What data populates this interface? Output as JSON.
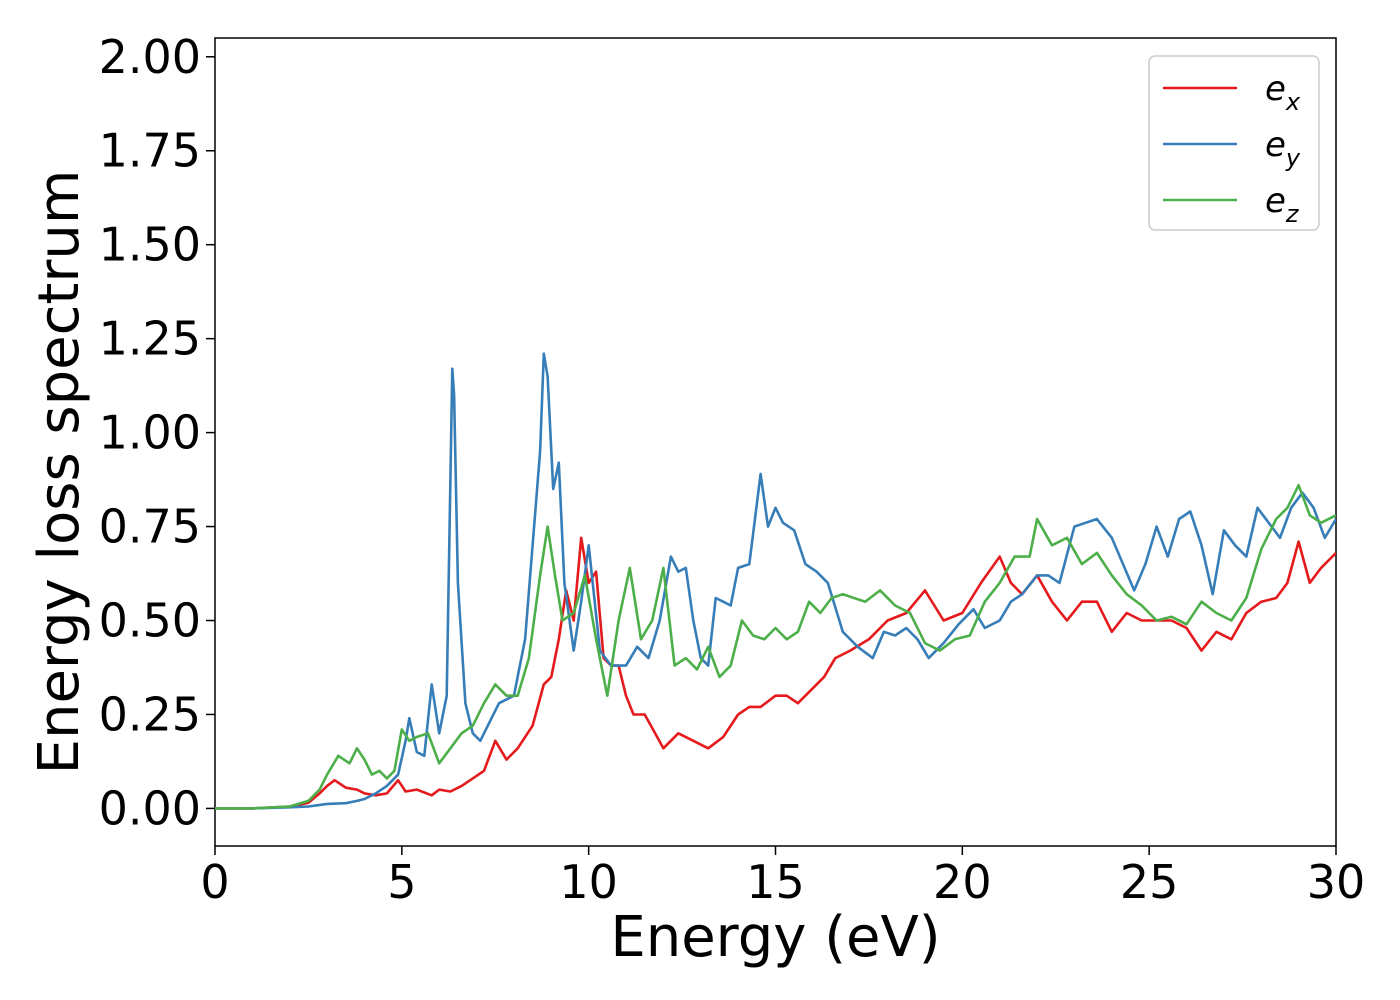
{
  "chart_data": {
    "type": "line",
    "title": "",
    "xlabel": "Energy (eV)",
    "ylabel": "Energy loss spectrum",
    "xlim": [
      0,
      30
    ],
    "ylim": [
      -0.1,
      2.05
    ],
    "xticks": [
      0,
      5,
      10,
      15,
      20,
      25,
      30
    ],
    "xtick_labels": [
      "0",
      "5",
      "10",
      "15",
      "20",
      "25",
      "30"
    ],
    "yticks": [
      0.0,
      0.25,
      0.5,
      0.75,
      1.0,
      1.25,
      1.5,
      1.75,
      2.0
    ],
    "ytick_labels": [
      "0.00",
      "0.25",
      "0.50",
      "0.75",
      "1.00",
      "1.25",
      "1.50",
      "1.75",
      "2.00"
    ],
    "grid": false,
    "legend_position": "top-right",
    "series": [
      {
        "name": "e_x",
        "legend_base": "e",
        "legend_sub": "x",
        "color": "#e41a1c",
        "x": [
          0,
          1,
          2,
          2.5,
          2.8,
          3.0,
          3.2,
          3.5,
          3.8,
          4.0,
          4.3,
          4.6,
          4.9,
          5.1,
          5.4,
          5.8,
          6.0,
          6.3,
          6.6,
          6.9,
          7.2,
          7.5,
          7.8,
          8.1,
          8.5,
          8.8,
          9.0,
          9.2,
          9.4,
          9.6,
          9.8,
          10.0,
          10.2,
          10.4,
          10.6,
          10.8,
          11.0,
          11.2,
          11.5,
          12.0,
          12.4,
          12.8,
          13.2,
          13.6,
          14.0,
          14.3,
          14.6,
          15.0,
          15.3,
          15.6,
          16.0,
          16.3,
          16.6,
          17.0,
          17.5,
          18.0,
          18.5,
          19.0,
          19.5,
          20.0,
          20.5,
          21.0,
          21.3,
          21.6,
          22.0,
          22.4,
          22.8,
          23.2,
          23.6,
          24.0,
          24.4,
          24.8,
          25.2,
          25.6,
          26.0,
          26.4,
          26.8,
          27.2,
          27.6,
          28.0,
          28.4,
          28.7,
          29.0,
          29.3,
          29.6,
          30.0
        ],
        "y": [
          0.0,
          0.0,
          0.005,
          0.015,
          0.04,
          0.06,
          0.075,
          0.055,
          0.05,
          0.04,
          0.035,
          0.04,
          0.075,
          0.045,
          0.05,
          0.035,
          0.05,
          0.045,
          0.06,
          0.08,
          0.1,
          0.18,
          0.13,
          0.16,
          0.22,
          0.33,
          0.35,
          0.45,
          0.58,
          0.5,
          0.72,
          0.6,
          0.63,
          0.4,
          0.38,
          0.38,
          0.3,
          0.25,
          0.25,
          0.16,
          0.2,
          0.18,
          0.16,
          0.19,
          0.25,
          0.27,
          0.27,
          0.3,
          0.3,
          0.28,
          0.32,
          0.35,
          0.4,
          0.42,
          0.45,
          0.5,
          0.52,
          0.58,
          0.5,
          0.52,
          0.6,
          0.67,
          0.6,
          0.57,
          0.62,
          0.55,
          0.5,
          0.55,
          0.55,
          0.47,
          0.52,
          0.5,
          0.5,
          0.5,
          0.48,
          0.42,
          0.47,
          0.45,
          0.52,
          0.55,
          0.56,
          0.6,
          0.71,
          0.6,
          0.64,
          0.68
        ]
      },
      {
        "name": "e_y",
        "legend_base": "e",
        "legend_sub": "y",
        "color": "#377eb8",
        "x": [
          0,
          1,
          2,
          2.5,
          3.0,
          3.5,
          3.8,
          4.0,
          4.3,
          4.6,
          4.9,
          5.1,
          5.2,
          5.4,
          5.6,
          5.8,
          6.0,
          6.2,
          6.35,
          6.4,
          6.5,
          6.7,
          6.9,
          7.1,
          7.3,
          7.6,
          8.0,
          8.3,
          8.5,
          8.7,
          8.8,
          8.9,
          9.05,
          9.2,
          9.35,
          9.6,
          9.8,
          10.0,
          10.3,
          10.6,
          11.0,
          11.3,
          11.6,
          11.9,
          12.2,
          12.4,
          12.6,
          12.8,
          13.0,
          13.2,
          13.4,
          13.6,
          13.8,
          14.0,
          14.3,
          14.6,
          14.8,
          15.0,
          15.2,
          15.5,
          15.8,
          16.1,
          16.4,
          16.8,
          17.2,
          17.6,
          17.9,
          18.2,
          18.5,
          18.8,
          19.1,
          19.5,
          19.9,
          20.3,
          20.6,
          21.0,
          21.3,
          21.6,
          22.0,
          22.3,
          22.6,
          23.0,
          23.3,
          23.6,
          24.0,
          24.3,
          24.6,
          24.9,
          25.2,
          25.5,
          25.8,
          26.1,
          26.4,
          26.7,
          27.0,
          27.3,
          27.6,
          27.9,
          28.2,
          28.5,
          28.8,
          29.1,
          29.4,
          29.7,
          30.0
        ],
        "y": [
          0.0,
          0.0,
          0.003,
          0.005,
          0.012,
          0.014,
          0.02,
          0.025,
          0.04,
          0.06,
          0.09,
          0.18,
          0.24,
          0.15,
          0.14,
          0.33,
          0.2,
          0.3,
          1.17,
          1.1,
          0.6,
          0.28,
          0.2,
          0.18,
          0.22,
          0.28,
          0.3,
          0.45,
          0.7,
          0.95,
          1.21,
          1.15,
          0.85,
          0.92,
          0.6,
          0.42,
          0.55,
          0.7,
          0.42,
          0.38,
          0.38,
          0.43,
          0.4,
          0.5,
          0.67,
          0.63,
          0.64,
          0.5,
          0.4,
          0.38,
          0.56,
          0.55,
          0.54,
          0.64,
          0.65,
          0.89,
          0.75,
          0.8,
          0.76,
          0.74,
          0.65,
          0.63,
          0.6,
          0.47,
          0.43,
          0.4,
          0.47,
          0.46,
          0.48,
          0.45,
          0.4,
          0.44,
          0.49,
          0.53,
          0.48,
          0.5,
          0.55,
          0.57,
          0.62,
          0.62,
          0.6,
          0.75,
          0.76,
          0.77,
          0.72,
          0.65,
          0.58,
          0.65,
          0.75,
          0.67,
          0.77,
          0.79,
          0.7,
          0.57,
          0.74,
          0.7,
          0.67,
          0.8,
          0.76,
          0.72,
          0.8,
          0.84,
          0.8,
          0.72,
          0.77
        ]
      },
      {
        "name": "e_z",
        "legend_base": "e",
        "legend_sub": "z",
        "color": "#4daf4a",
        "x": [
          0,
          1,
          2,
          2.5,
          2.8,
          3.0,
          3.3,
          3.6,
          3.8,
          4.0,
          4.2,
          4.4,
          4.6,
          4.8,
          5.0,
          5.2,
          5.4,
          5.7,
          6.0,
          6.3,
          6.6,
          6.9,
          7.2,
          7.5,
          7.8,
          8.1,
          8.4,
          8.7,
          8.9,
          9.1,
          9.3,
          9.6,
          9.9,
          10.2,
          10.5,
          10.8,
          11.1,
          11.4,
          11.7,
          12.0,
          12.3,
          12.6,
          12.9,
          13.2,
          13.5,
          13.8,
          14.1,
          14.4,
          14.7,
          15.0,
          15.3,
          15.6,
          15.9,
          16.2,
          16.5,
          16.8,
          17.1,
          17.4,
          17.8,
          18.2,
          18.6,
          19.0,
          19.4,
          19.8,
          20.2,
          20.6,
          21.0,
          21.4,
          21.8,
          22.0,
          22.4,
          22.8,
          23.2,
          23.6,
          24.0,
          24.4,
          24.8,
          25.2,
          25.6,
          26.0,
          26.4,
          26.8,
          27.2,
          27.6,
          28.0,
          28.4,
          28.7,
          29.0,
          29.3,
          29.6,
          30.0
        ],
        "y": [
          0.0,
          0.0,
          0.005,
          0.02,
          0.05,
          0.09,
          0.14,
          0.12,
          0.16,
          0.13,
          0.09,
          0.1,
          0.08,
          0.1,
          0.21,
          0.18,
          0.19,
          0.2,
          0.12,
          0.16,
          0.2,
          0.22,
          0.28,
          0.33,
          0.3,
          0.3,
          0.4,
          0.62,
          0.75,
          0.62,
          0.5,
          0.52,
          0.62,
          0.45,
          0.3,
          0.5,
          0.64,
          0.45,
          0.5,
          0.64,
          0.38,
          0.4,
          0.37,
          0.43,
          0.35,
          0.38,
          0.5,
          0.46,
          0.45,
          0.48,
          0.45,
          0.47,
          0.55,
          0.52,
          0.56,
          0.57,
          0.56,
          0.55,
          0.58,
          0.54,
          0.52,
          0.44,
          0.42,
          0.45,
          0.46,
          0.55,
          0.6,
          0.67,
          0.67,
          0.77,
          0.7,
          0.72,
          0.65,
          0.68,
          0.62,
          0.57,
          0.54,
          0.5,
          0.51,
          0.49,
          0.55,
          0.52,
          0.5,
          0.56,
          0.69,
          0.77,
          0.8,
          0.86,
          0.78,
          0.76,
          0.78
        ]
      }
    ]
  }
}
